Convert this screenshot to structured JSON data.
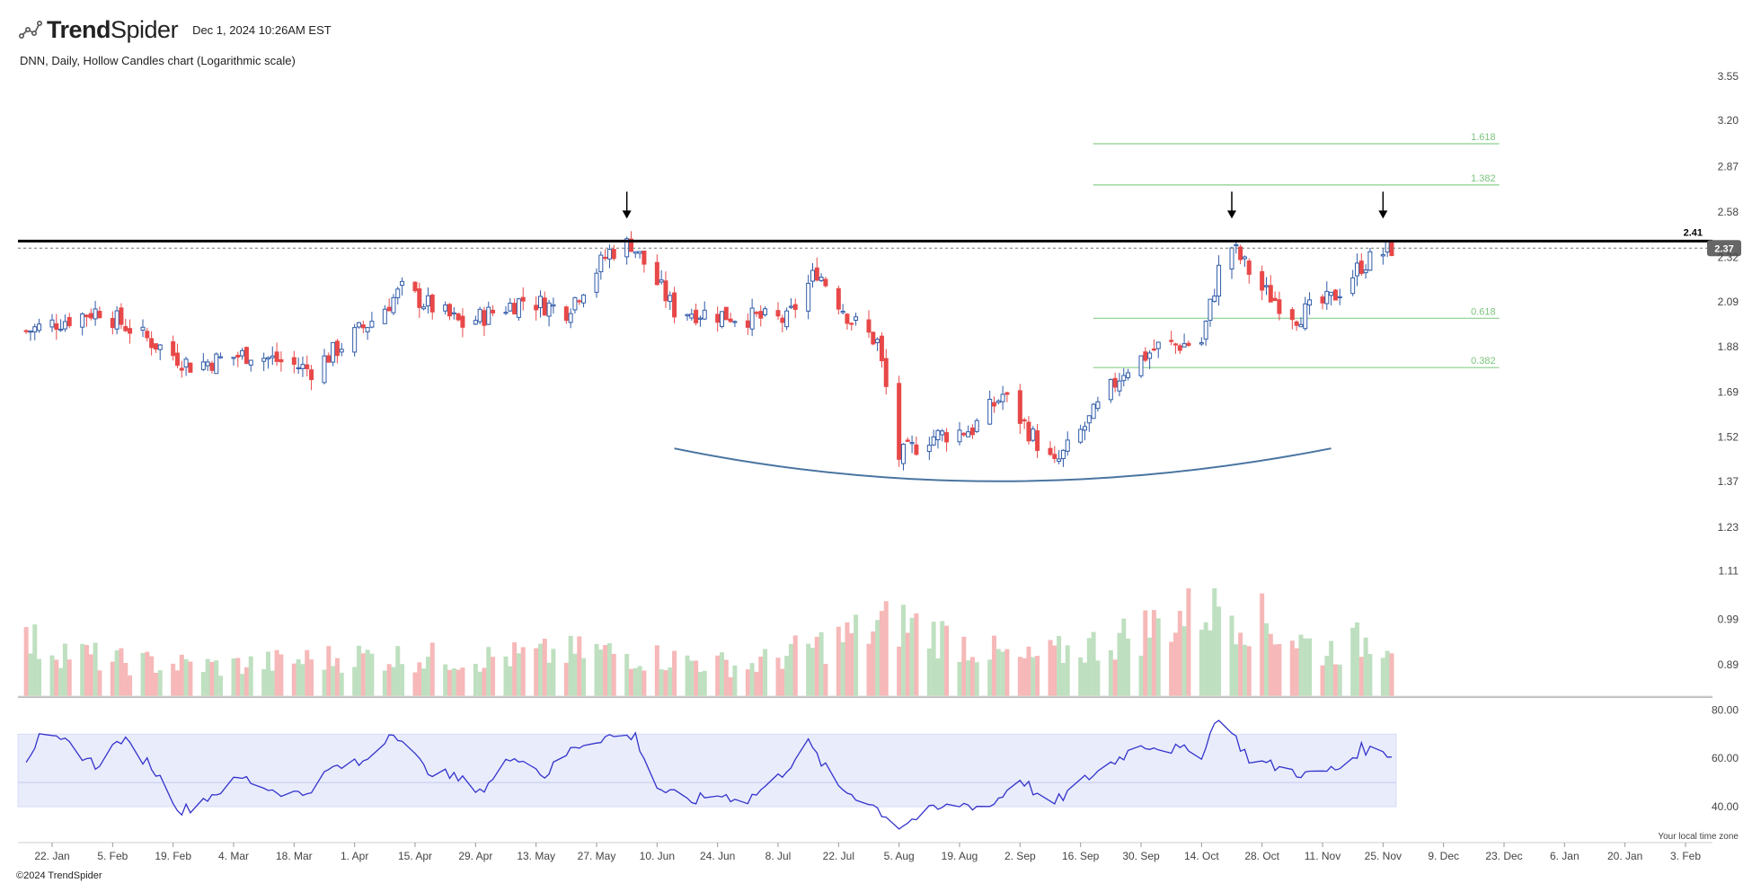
{
  "app": {
    "brand_bold": "Trend",
    "brand_light": "Spider",
    "date": "Dec 1, 2024 10:26AM EST",
    "copyright": "©2024 TrendSpider",
    "timezone_note": "Your local time zone"
  },
  "colors": {
    "up": "#2f5aa8",
    "down": "#e84848",
    "vol_up": "#bfe0c0",
    "vol_down": "#f6b8b8",
    "fib": "#8ccf8c",
    "rsi_line": "#3333cc",
    "rsi_band": "#e9ecfb",
    "resistance": "#000000",
    "arc": "#4a74a0"
  },
  "chart_data": [
    {
      "type": "candlestick",
      "title": "DNN, Daily, Hollow Candles chart (Logarithmic scale)",
      "scale": "log",
      "y_ticks": [
        "3.55",
        "3.20",
        "2.87",
        "2.58",
        "2.32",
        "2.09",
        "1.88",
        "1.69",
        "1.52",
        "1.37",
        "1.23",
        "1.11",
        "0.99",
        "0.89"
      ],
      "x_ticks": [
        "22. Jan",
        "5. Feb",
        "19. Feb",
        "4. Mar",
        "18. Mar",
        "1. Apr",
        "15. Apr",
        "29. Apr",
        "13. May",
        "27. May",
        "10. Jun",
        "24. Jun",
        "8. Jul",
        "22. Jul",
        "5. Aug",
        "19. Aug",
        "2. Sep",
        "16. Sep",
        "30. Sep",
        "14. Oct",
        "28. Oct",
        "11. Nov",
        "25. Nov",
        "9. Dec",
        "23. Dec",
        "6. Jan",
        "20. Jan",
        "3. Feb"
      ],
      "resistance": {
        "value": 2.41,
        "label": "2.41"
      },
      "last_price": {
        "value": 2.37,
        "label": "2.37"
      },
      "fib_levels": [
        {
          "label": "1.618",
          "value": 3.03
        },
        {
          "label": "1.382",
          "value": 2.75
        },
        {
          "label": "0.618",
          "value": 2.01
        },
        {
          "label": "0.382",
          "value": 1.79
        }
      ],
      "arrows": [
        {
          "date": "2024-06-03"
        },
        {
          "date": "2024-10-21"
        },
        {
          "date": "2024-11-25"
        }
      ],
      "rounded_bottom": {
        "start_date": "2024-06-14",
        "bottom_date": "2024-08-27",
        "bottom_value": 1.37,
        "end_date": "2024-11-13",
        "start_value": 1.79,
        "end_value": 1.79
      },
      "path_points": [
        {
          "date": "2024-01-16",
          "value": 1.95
        },
        {
          "date": "2024-02-02",
          "value": 2.05
        },
        {
          "date": "2024-02-23",
          "value": 1.8
        },
        {
          "date": "2024-03-08",
          "value": 1.85
        },
        {
          "date": "2024-03-22",
          "value": 1.78
        },
        {
          "date": "2024-04-05",
          "value": 2.0
        },
        {
          "date": "2024-04-12",
          "value": 2.15
        },
        {
          "date": "2024-04-26",
          "value": 1.98
        },
        {
          "date": "2024-05-10",
          "value": 2.1
        },
        {
          "date": "2024-05-20",
          "value": 2.05
        },
        {
          "date": "2024-05-30",
          "value": 2.35
        },
        {
          "date": "2024-06-04",
          "value": 2.4
        },
        {
          "date": "2024-06-14",
          "value": 2.05
        },
        {
          "date": "2024-06-28",
          "value": 2.02
        },
        {
          "date": "2024-07-10",
          "value": 2.0
        },
        {
          "date": "2024-07-17",
          "value": 2.25
        },
        {
          "date": "2024-07-25",
          "value": 2.0
        },
        {
          "date": "2024-07-31",
          "value": 1.9
        },
        {
          "date": "2024-08-05",
          "value": 1.45
        },
        {
          "date": "2024-08-12",
          "value": 1.52
        },
        {
          "date": "2024-08-22",
          "value": 1.55
        },
        {
          "date": "2024-08-29",
          "value": 1.68
        },
        {
          "date": "2024-09-06",
          "value": 1.5
        },
        {
          "date": "2024-09-10",
          "value": 1.42
        },
        {
          "date": "2024-09-18",
          "value": 1.58
        },
        {
          "date": "2024-09-26",
          "value": 1.78
        },
        {
          "date": "2024-10-04",
          "value": 1.88
        },
        {
          "date": "2024-10-14",
          "value": 1.9
        },
        {
          "date": "2024-10-18",
          "value": 2.25
        },
        {
          "date": "2024-10-21",
          "value": 2.38
        },
        {
          "date": "2024-10-28",
          "value": 2.15
        },
        {
          "date": "2024-11-05",
          "value": 2.02
        },
        {
          "date": "2024-11-13",
          "value": 2.1
        },
        {
          "date": "2024-11-20",
          "value": 2.28
        },
        {
          "date": "2024-11-27",
          "value": 2.37
        }
      ]
    },
    {
      "type": "bar",
      "title": "",
      "note": "Volume bars (no axis labels)",
      "volume_profile": [
        {
          "date": "2024-01-16",
          "value": 0.55
        },
        {
          "date": "2024-02-05",
          "value": 0.35
        },
        {
          "date": "2024-03-01",
          "value": 0.3
        },
        {
          "date": "2024-04-01",
          "value": 0.4
        },
        {
          "date": "2024-05-01",
          "value": 0.38
        },
        {
          "date": "2024-05-27",
          "value": 0.45
        },
        {
          "date": "2024-07-01",
          "value": 0.3
        },
        {
          "date": "2024-08-05",
          "value": 0.75
        },
        {
          "date": "2024-09-02",
          "value": 0.35
        },
        {
          "date": "2024-09-23",
          "value": 0.55
        },
        {
          "date": "2024-10-18",
          "value": 0.95
        },
        {
          "date": "2024-11-11",
          "value": 0.45
        },
        {
          "date": "2024-11-25",
          "value": 0.6
        }
      ]
    },
    {
      "type": "line",
      "title": "",
      "note": "RSI oscillator",
      "y_ticks": [
        "80.00",
        "60.00",
        "40.00"
      ],
      "ylim": [
        30,
        82
      ],
      "band": [
        40,
        70
      ],
      "midline": 50,
      "points": [
        {
          "date": "2024-01-16",
          "value": 60
        },
        {
          "date": "2024-01-19",
          "value": 68
        },
        {
          "date": "2024-01-26",
          "value": 66
        },
        {
          "date": "2024-02-01",
          "value": 57
        },
        {
          "date": "2024-02-07",
          "value": 68
        },
        {
          "date": "2024-02-14",
          "value": 57
        },
        {
          "date": "2024-02-21",
          "value": 38
        },
        {
          "date": "2024-02-28",
          "value": 45
        },
        {
          "date": "2024-03-06",
          "value": 52
        },
        {
          "date": "2024-03-13",
          "value": 47
        },
        {
          "date": "2024-03-20",
          "value": 45
        },
        {
          "date": "2024-03-27",
          "value": 56
        },
        {
          "date": "2024-04-03",
          "value": 58
        },
        {
          "date": "2024-04-10",
          "value": 72
        },
        {
          "date": "2024-04-17",
          "value": 56
        },
        {
          "date": "2024-04-24",
          "value": 52
        },
        {
          "date": "2024-05-01",
          "value": 47
        },
        {
          "date": "2024-05-08",
          "value": 62
        },
        {
          "date": "2024-05-15",
          "value": 53
        },
        {
          "date": "2024-05-22",
          "value": 65
        },
        {
          "date": "2024-05-29",
          "value": 69
        },
        {
          "date": "2024-06-05",
          "value": 69
        },
        {
          "date": "2024-06-10",
          "value": 48
        },
        {
          "date": "2024-06-17",
          "value": 42
        },
        {
          "date": "2024-06-24",
          "value": 45
        },
        {
          "date": "2024-07-01",
          "value": 43
        },
        {
          "date": "2024-07-08",
          "value": 52
        },
        {
          "date": "2024-07-15",
          "value": 66
        },
        {
          "date": "2024-07-22",
          "value": 48
        },
        {
          "date": "2024-07-29",
          "value": 42
        },
        {
          "date": "2024-08-05",
          "value": 32
        },
        {
          "date": "2024-08-12",
          "value": 38
        },
        {
          "date": "2024-08-19",
          "value": 41
        },
        {
          "date": "2024-08-26",
          "value": 40
        },
        {
          "date": "2024-09-02",
          "value": 52
        },
        {
          "date": "2024-09-09",
          "value": 40
        },
        {
          "date": "2024-09-16",
          "value": 50
        },
        {
          "date": "2024-09-23",
          "value": 58
        },
        {
          "date": "2024-09-30",
          "value": 66
        },
        {
          "date": "2024-10-07",
          "value": 64
        },
        {
          "date": "2024-10-14",
          "value": 62
        },
        {
          "date": "2024-10-18",
          "value": 78
        },
        {
          "date": "2024-10-25",
          "value": 60
        },
        {
          "date": "2024-11-01",
          "value": 56
        },
        {
          "date": "2024-11-08",
          "value": 53
        },
        {
          "date": "2024-11-15",
          "value": 56
        },
        {
          "date": "2024-11-20",
          "value": 64
        },
        {
          "date": "2024-11-27",
          "value": 62
        }
      ]
    }
  ]
}
